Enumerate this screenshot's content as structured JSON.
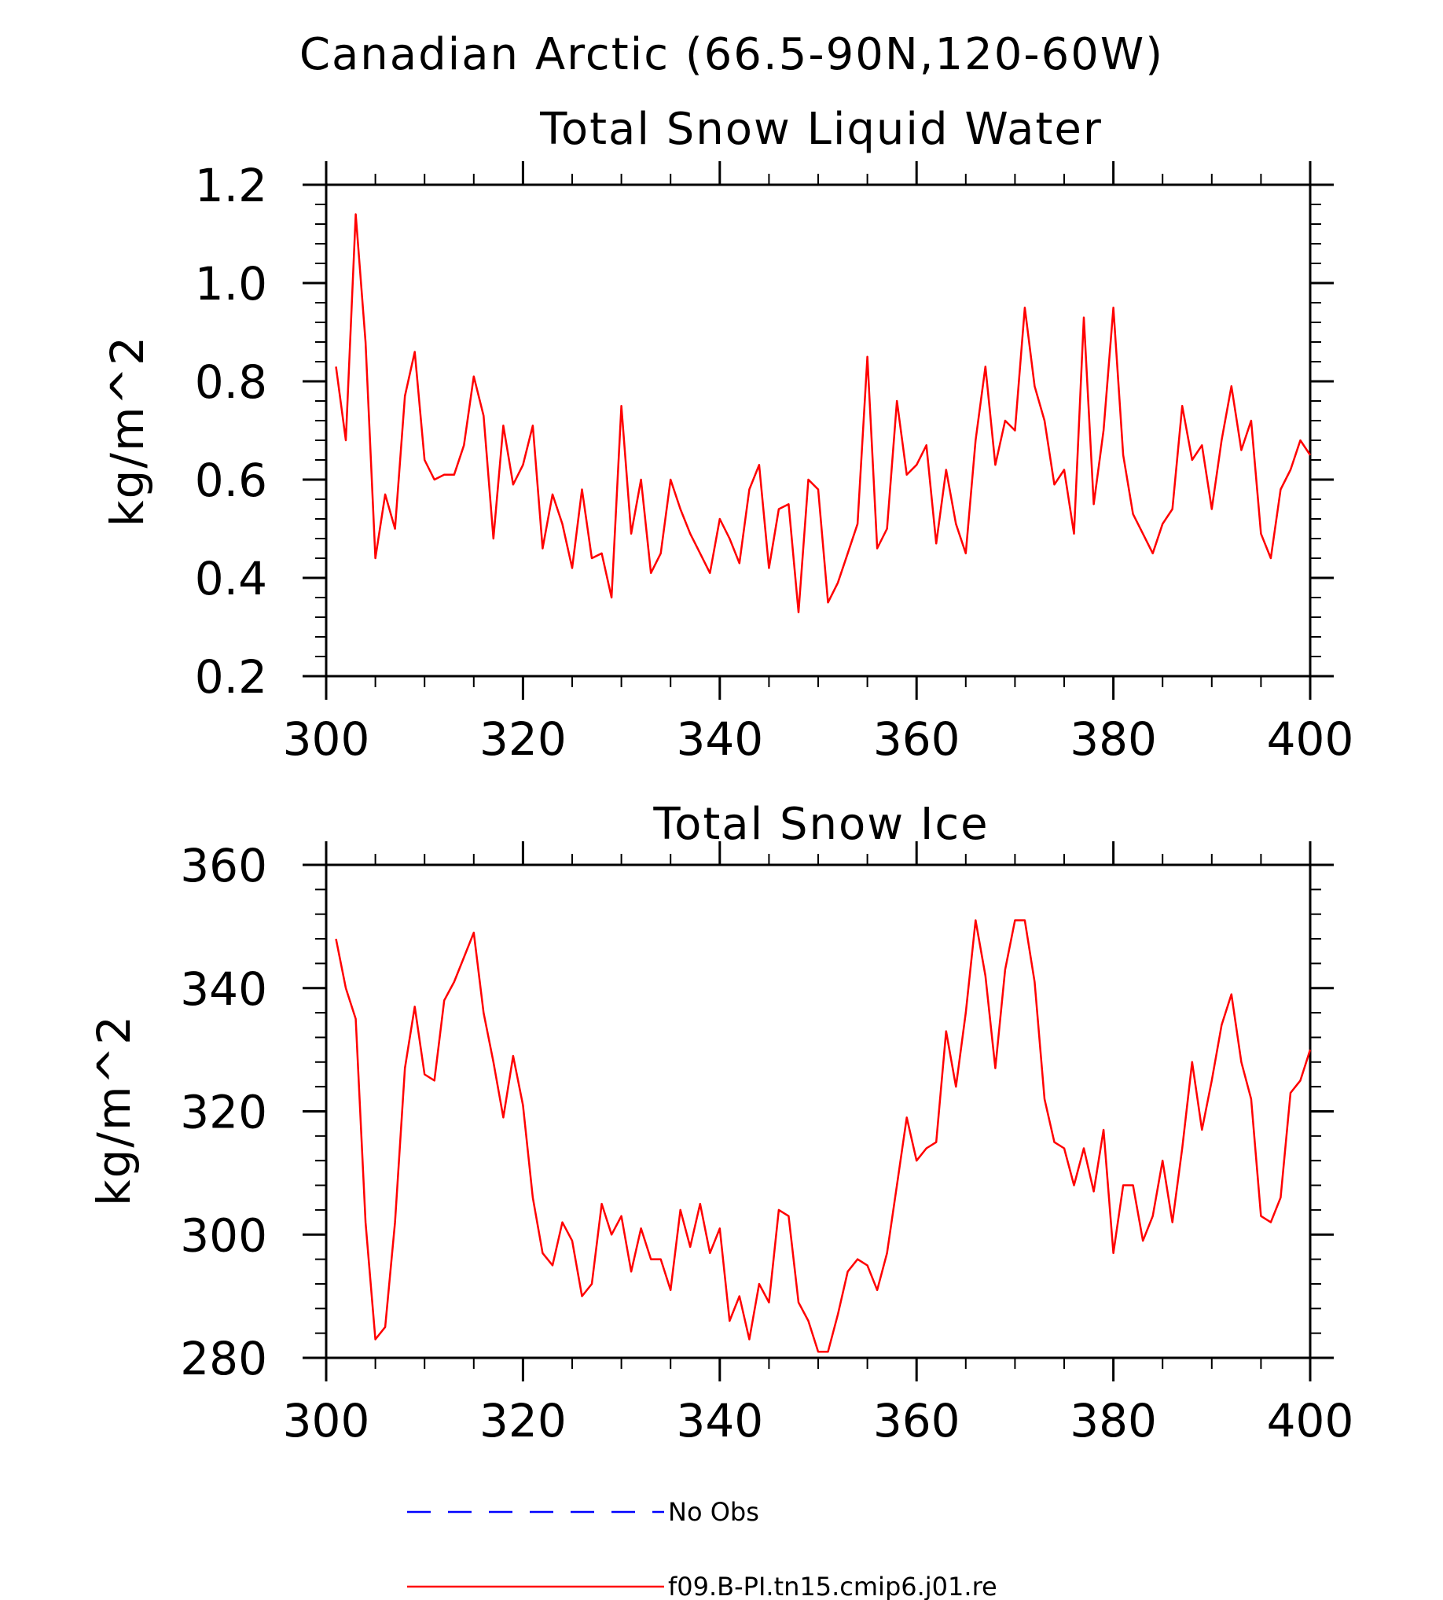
{
  "figure": {
    "region_title": "Canadian Arctic (66.5-90N,120-60W)"
  },
  "chart_data": [
    {
      "type": "line",
      "title": "Total Snow Liquid Water",
      "xlabel": "",
      "ylabel": "kg/m^2",
      "xlim": [
        300,
        400
      ],
      "ylim": [
        0.2,
        1.2
      ],
      "xticks": [
        300,
        320,
        340,
        360,
        380,
        400
      ],
      "xtick_labels": [
        "300",
        "320",
        "340",
        "360",
        "380",
        "400"
      ],
      "yticks": [
        0.2,
        0.4,
        0.6,
        0.8,
        1.0,
        1.2
      ],
      "ytick_labels": [
        "0.2",
        "0.4",
        "0.6",
        "0.8",
        "1.0",
        "1.2"
      ],
      "grid": false,
      "series": [
        {
          "name": "f09.B-PI.tn15.cmip6.j01.re",
          "color": "#ff0000",
          "x": [
            301,
            302,
            303,
            304,
            305,
            306,
            307,
            308,
            309,
            310,
            311,
            312,
            313,
            314,
            315,
            316,
            317,
            318,
            319,
            320,
            321,
            322,
            323,
            324,
            325,
            326,
            327,
            328,
            329,
            330,
            331,
            332,
            333,
            334,
            335,
            336,
            337,
            338,
            339,
            340,
            341,
            342,
            343,
            344,
            345,
            346,
            347,
            348,
            349,
            350,
            351,
            352,
            353,
            354,
            355,
            356,
            357,
            358,
            359,
            360,
            361,
            362,
            363,
            364,
            365,
            366,
            367,
            368,
            369,
            370,
            371,
            372,
            373,
            374,
            375,
            376,
            377,
            378,
            379,
            380,
            381,
            382,
            383,
            384,
            385,
            386,
            387,
            388,
            389,
            390,
            391,
            392,
            393,
            394,
            395,
            396,
            397,
            398,
            399,
            400
          ],
          "y": [
            0.83,
            0.68,
            1.14,
            0.88,
            0.44,
            0.57,
            0.5,
            0.77,
            0.86,
            0.64,
            0.6,
            0.61,
            0.61,
            0.67,
            0.81,
            0.73,
            0.48,
            0.71,
            0.59,
            0.63,
            0.71,
            0.46,
            0.57,
            0.51,
            0.42,
            0.58,
            0.44,
            0.45,
            0.36,
            0.75,
            0.49,
            0.6,
            0.41,
            0.45,
            0.6,
            0.54,
            0.49,
            0.45,
            0.41,
            0.52,
            0.48,
            0.43,
            0.58,
            0.63,
            0.42,
            0.54,
            0.55,
            0.33,
            0.6,
            0.58,
            0.35,
            0.39,
            0.45,
            0.51,
            0.85,
            0.46,
            0.5,
            0.76,
            0.61,
            0.63,
            0.67,
            0.47,
            0.62,
            0.51,
            0.45,
            0.68,
            0.83,
            0.63,
            0.72,
            0.7,
            0.95,
            0.79,
            0.72,
            0.59,
            0.62,
            0.49,
            0.93,
            0.55,
            0.7,
            0.95,
            0.65,
            0.53,
            0.49,
            0.45,
            0.51,
            0.54,
            0.75,
            0.64,
            0.67,
            0.54,
            0.68,
            0.79,
            0.66,
            0.72,
            0.49,
            0.44,
            0.58,
            0.62,
            0.68,
            0.65
          ]
        }
      ]
    },
    {
      "type": "line",
      "title": "Total Snow Ice",
      "xlabel": "",
      "ylabel": "kg/m^2",
      "xlim": [
        300,
        400
      ],
      "ylim": [
        280,
        360
      ],
      "xticks": [
        300,
        320,
        340,
        360,
        380,
        400
      ],
      "xtick_labels": [
        "300",
        "320",
        "340",
        "360",
        "380",
        "400"
      ],
      "yticks": [
        280,
        300,
        320,
        340,
        360
      ],
      "ytick_labels": [
        "280",
        "300",
        "320",
        "340",
        "360"
      ],
      "grid": false,
      "series": [
        {
          "name": "f09.B-PI.tn15.cmip6.j01.re",
          "color": "#ff0000",
          "x": [
            301,
            302,
            303,
            304,
            305,
            306,
            307,
            308,
            309,
            310,
            311,
            312,
            313,
            314,
            315,
            316,
            317,
            318,
            319,
            320,
            321,
            322,
            323,
            324,
            325,
            326,
            327,
            328,
            329,
            330,
            331,
            332,
            333,
            334,
            335,
            336,
            337,
            338,
            339,
            340,
            341,
            342,
            343,
            344,
            345,
            346,
            347,
            348,
            349,
            350,
            351,
            352,
            353,
            354,
            355,
            356,
            357,
            358,
            359,
            360,
            361,
            362,
            363,
            364,
            365,
            366,
            367,
            368,
            369,
            370,
            371,
            372,
            373,
            374,
            375,
            376,
            377,
            378,
            379,
            380,
            381,
            382,
            383,
            384,
            385,
            386,
            387,
            388,
            389,
            390,
            391,
            392,
            393,
            394,
            395,
            396,
            397,
            398,
            399,
            400
          ],
          "y": [
            348,
            340,
            335,
            302,
            283,
            285,
            302,
            327,
            337,
            326,
            325,
            338,
            341,
            345,
            349,
            336,
            328,
            319,
            329,
            321,
            306,
            297,
            295,
            302,
            299,
            290,
            292,
            305,
            300,
            303,
            294,
            301,
            296,
            296,
            291,
            304,
            298,
            305,
            297,
            301,
            286,
            290,
            283,
            292,
            289,
            304,
            303,
            289,
            286,
            281,
            281,
            287,
            294,
            296,
            295,
            291,
            297,
            308,
            319,
            312,
            314,
            315,
            333,
            324,
            336,
            351,
            342,
            327,
            343,
            351,
            351,
            341,
            322,
            315,
            314,
            308,
            314,
            307,
            317,
            297,
            308,
            308,
            299,
            303,
            312,
            302,
            314,
            328,
            317,
            325,
            334,
            339,
            328,
            322,
            303,
            302,
            306,
            323,
            325,
            330
          ]
        }
      ]
    }
  ],
  "legend": {
    "placement": "bottom-center",
    "entries": [
      {
        "label": "No Obs",
        "color": "#0000ff",
        "style": "dashed"
      },
      {
        "label": "f09.B-PI.tn15.cmip6.j01.re",
        "color": "#ff0000",
        "style": "solid"
      }
    ]
  }
}
